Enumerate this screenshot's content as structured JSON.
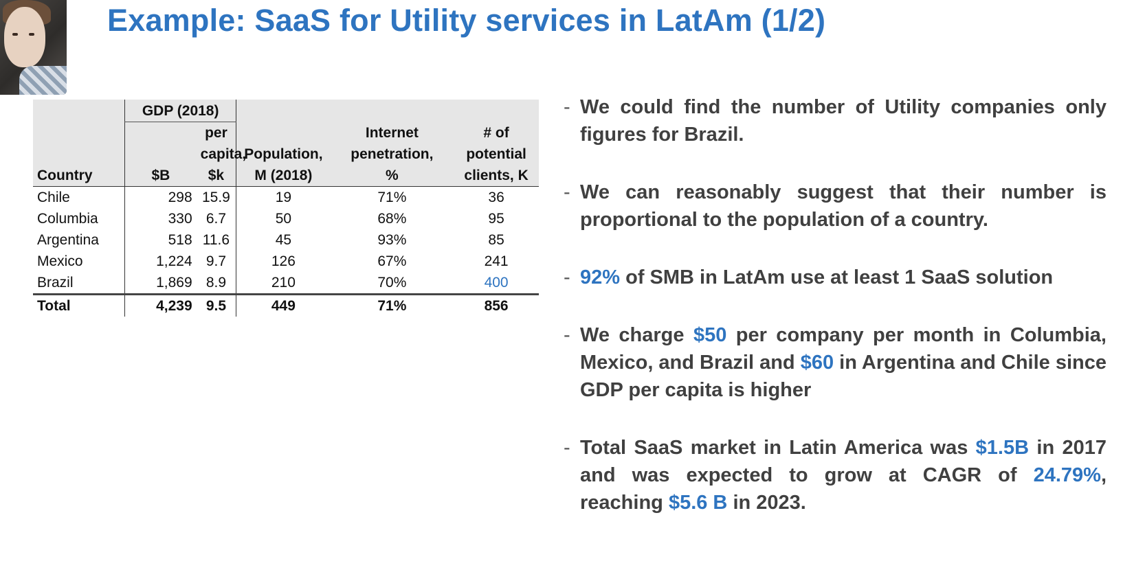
{
  "title": "Example: SaaS for Utility services in LatAm (1/2)",
  "table": {
    "group_header": "GDP (2018)",
    "headers": {
      "country": "Country",
      "gdp_b": "$B",
      "gdp_pc_l1": "per",
      "gdp_pc_l2": "capita,",
      "gdp_pc_l3": "$k",
      "pop_l1": "Population,",
      "pop_l2": "M (2018)",
      "inet_l1": "Internet",
      "inet_l2": "penetration,",
      "inet_l3": "%",
      "clients_l1": "# of",
      "clients_l2": "potential",
      "clients_l3": "clients, K"
    },
    "rows": [
      {
        "country": "Chile",
        "gdp": "298",
        "per_capita": "15.9",
        "population": "19",
        "internet": "71%",
        "clients": "36"
      },
      {
        "country": "Columbia",
        "gdp": "330",
        "per_capita": "6.7",
        "population": "50",
        "internet": "68%",
        "clients": "95"
      },
      {
        "country": "Argentina",
        "gdp": "518",
        "per_capita": "11.6",
        "population": "45",
        "internet": "93%",
        "clients": "85"
      },
      {
        "country": "Mexico",
        "gdp": "1,224",
        "per_capita": "9.7",
        "population": "126",
        "internet": "67%",
        "clients": "241"
      },
      {
        "country": "Brazil",
        "gdp": "1,869",
        "per_capita": "8.9",
        "population": "210",
        "internet": "70%",
        "clients": "400"
      }
    ],
    "total": {
      "country": "Total",
      "gdp": "4,239",
      "per_capita": "9.5",
      "population": "449",
      "internet": "71%",
      "clients": "856"
    },
    "highlight_color": "#2e74c0"
  },
  "bullets": {
    "b1": "We could find the number of Utility companies only figures for Brazil.",
    "b2": "We can reasonably suggest that their number is proportional to the population of a country.",
    "b3_accent": "92%",
    "b3_text": " of SMB in LatAm use at least 1 SaaS solution",
    "b4_p1": "We charge ",
    "b4_a1": "$50",
    "b4_p2": " per company per month in Columbia, Mexico, and Brazil and ",
    "b4_a2": "$60",
    "b4_p3": " in Argentina and Chile since GDP per capita is higher",
    "b5_p1": "Total SaaS market in Latin America was ",
    "b5_a1": "$1.5B",
    "b5_p2": " in 2017 and was expected to grow at CAGR of ",
    "b5_a2": "24.79%",
    "b5_p3": ", reaching ",
    "b5_a3": "$5.6 B",
    "b5_p4": " in 2023."
  },
  "colors": {
    "accent": "#2e74c0",
    "text": "#404040"
  }
}
